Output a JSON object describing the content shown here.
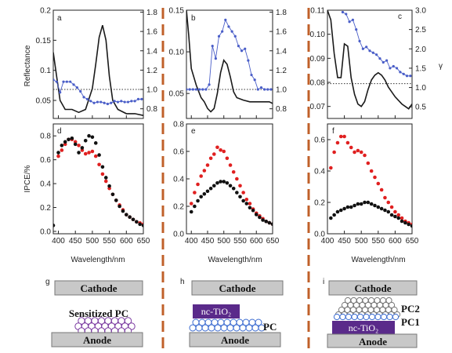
{
  "figure": {
    "y_label_top": "Reflectance",
    "y_label_bottom": "IPCE/%",
    "x_label": "Wavelength/nm",
    "gamma_symbol": "γ",
    "panel_labels": [
      "a",
      "b",
      "c",
      "d",
      "e",
      "f",
      "g",
      "h",
      "i"
    ]
  },
  "panels": {
    "g": {
      "cathode": "Cathode",
      "layer": "Sensitized PC",
      "anode": "Anode"
    },
    "h": {
      "cathode": "Cathode",
      "oxide": "nc-TiO₂",
      "pc": "PC",
      "anode": "Anode"
    },
    "i": {
      "cathode": "Cathode",
      "pc2": "PC2",
      "pc1": "PC1",
      "oxide": "nc-TiO₂",
      "anode": "Anode"
    }
  },
  "colors": {
    "reflectance": "#1a1a1a",
    "gamma": "#4a5ec8",
    "ipce_red": "#e02020",
    "ipce_black": "#111111",
    "plate": "#c8c8c8",
    "oxide": "#5a2a8a",
    "sphere_blue": "#3a6ad0",
    "sphere_purple": "#7a3aa0",
    "divider": "#c0602a"
  },
  "chart_data": [
    {
      "type": "line",
      "panel": "a",
      "xlim": [
        385,
        650
      ],
      "xticks": [
        400,
        450,
        500,
        550,
        600,
        650
      ],
      "ylim": [
        0.02,
        0.2
      ],
      "yticks": [
        0.05,
        0.1,
        0.15,
        0.2
      ],
      "yticklabels": [
        "0.05",
        "0.1",
        "0.15",
        "0.2"
      ],
      "y2lim": [
        0.7,
        1.82
      ],
      "y2ticks": [
        0.8,
        1.0,
        1.2,
        1.4,
        1.6,
        1.8
      ],
      "y2ticklabels": [
        "0.8",
        "1.0",
        "1.2",
        "1.4",
        "1.6",
        "1.8"
      ],
      "reference_line": 1.0,
      "series": [
        {
          "axis": "left",
          "x": [
            385,
            395,
            405,
            420,
            440,
            460,
            480,
            500,
            510,
            520,
            530,
            540,
            550,
            560,
            575,
            600,
            625,
            650
          ],
          "y": [
            0.13,
            0.09,
            0.05,
            0.035,
            0.035,
            0.03,
            0.035,
            0.07,
            0.11,
            0.155,
            0.175,
            0.15,
            0.09,
            0.05,
            0.035,
            0.028,
            0.028,
            0.025
          ]
        },
        {
          "axis": "right",
          "x": [
            385,
            395,
            405,
            415,
            425,
            435,
            445,
            455,
            465,
            475,
            485,
            495,
            505,
            515,
            525,
            535,
            545,
            555,
            565,
            575,
            585,
            595,
            605,
            615,
            625,
            635,
            645
          ],
          "y": [
            1.1,
            1.08,
            0.97,
            1.08,
            1.08,
            1.08,
            1.05,
            1.02,
            0.98,
            0.92,
            0.9,
            0.88,
            0.86,
            0.87,
            0.87,
            0.86,
            0.85,
            0.86,
            0.88,
            0.87,
            0.88,
            0.87,
            0.87,
            0.88,
            0.88,
            0.9,
            0.9
          ]
        }
      ]
    },
    {
      "type": "line",
      "panel": "b",
      "xlim": [
        385,
        650
      ],
      "xticks": [
        400,
        450,
        500,
        550,
        600,
        650
      ],
      "ylim": [
        0.02,
        0.15
      ],
      "yticks": [
        0.05,
        0.1,
        0.15
      ],
      "yticklabels": [
        "0.05",
        "0.10",
        "0.15"
      ],
      "y2lim": [
        0.7,
        1.82
      ],
      "y2ticks": [
        0.8,
        1.0,
        1.2,
        1.4,
        1.6,
        1.8
      ],
      "y2ticklabels": [
        "0.8",
        "1.0",
        "1.2",
        "1.4",
        "1.6",
        "1.8"
      ],
      "reference_line": 1.0,
      "series": [
        {
          "axis": "left",
          "x": [
            385,
            392,
            400,
            415,
            430,
            440,
            450,
            460,
            470,
            480,
            490,
            500,
            510,
            520,
            530,
            540,
            560,
            580,
            600,
            620,
            640,
            650
          ],
          "y": [
            0.15,
            0.12,
            0.08,
            0.06,
            0.045,
            0.04,
            0.032,
            0.028,
            0.032,
            0.05,
            0.075,
            0.09,
            0.085,
            0.07,
            0.052,
            0.045,
            0.042,
            0.04,
            0.04,
            0.04,
            0.04,
            0.038
          ]
        },
        {
          "axis": "right",
          "x": [
            385,
            395,
            405,
            415,
            425,
            435,
            445,
            455,
            465,
            475,
            485,
            495,
            505,
            515,
            525,
            535,
            545,
            555,
            565,
            575,
            585,
            595,
            605,
            615,
            625,
            635,
            645
          ],
          "y": [
            1.0,
            1.0,
            1.0,
            1.0,
            1.0,
            1.0,
            1.0,
            1.05,
            1.45,
            1.32,
            1.55,
            1.6,
            1.72,
            1.65,
            1.6,
            1.55,
            1.45,
            1.4,
            1.42,
            1.3,
            1.15,
            1.1,
            1.0,
            1.02,
            1.0,
            1.0,
            1.0
          ]
        }
      ]
    },
    {
      "type": "line",
      "panel": "c",
      "xlim": [
        400,
        650
      ],
      "xticks": [
        400,
        450,
        500,
        550,
        600,
        650
      ],
      "ylim": [
        0.065,
        0.11
      ],
      "yticks": [
        0.07,
        0.08,
        0.09,
        0.1,
        0.11
      ],
      "yticklabels": [
        "0.07",
        "0.08",
        "0.09",
        "0.10",
        "0.11"
      ],
      "y2lim": [
        0.2,
        3.0
      ],
      "y2ticks": [
        0.5,
        1.0,
        1.5,
        2.0,
        2.5,
        3.0
      ],
      "y2ticklabels": [
        "0.5",
        "1.0",
        "1.5",
        "2.0",
        "2.5",
        "3.0"
      ],
      "reference_line": 1.1,
      "series": [
        {
          "axis": "left",
          "x": [
            400,
            410,
            420,
            430,
            440,
            450,
            460,
            470,
            480,
            490,
            500,
            510,
            520,
            530,
            540,
            550,
            560,
            570,
            580,
            600,
            620,
            640,
            650
          ],
          "y": [
            0.11,
            0.106,
            0.092,
            0.082,
            0.082,
            0.096,
            0.095,
            0.082,
            0.075,
            0.071,
            0.07,
            0.072,
            0.077,
            0.081,
            0.083,
            0.084,
            0.083,
            0.081,
            0.078,
            0.074,
            0.071,
            0.069,
            0.071
          ]
        },
        {
          "axis": "right",
          "x": [
            445,
            455,
            465,
            475,
            485,
            495,
            505,
            515,
            525,
            535,
            545,
            555,
            565,
            575,
            585,
            595,
            605,
            615,
            625,
            635,
            645
          ],
          "y": [
            2.95,
            2.9,
            2.7,
            2.75,
            2.5,
            2.2,
            2.0,
            2.05,
            1.95,
            1.9,
            1.85,
            1.75,
            1.65,
            1.7,
            1.5,
            1.55,
            1.5,
            1.4,
            1.35,
            1.3,
            1.3
          ]
        }
      ]
    },
    {
      "type": "scatter",
      "panel": "d",
      "xlim": [
        385,
        650
      ],
      "xticks": [
        400,
        450,
        500,
        550,
        600,
        650
      ],
      "ylim": [
        -0.02,
        0.9
      ],
      "yticks": [
        0.0,
        0.2,
        0.4,
        0.6,
        0.8
      ],
      "yticklabels": [
        "0.0",
        "0.2",
        "0.4",
        "0.6",
        "0.8"
      ],
      "series": [
        {
          "color": "red",
          "x": [
            400,
            410,
            420,
            430,
            440,
            450,
            460,
            470,
            480,
            490,
            500,
            510,
            520,
            530,
            540,
            550,
            560,
            570,
            580,
            590,
            600,
            610,
            620,
            630,
            640,
            650
          ],
          "y": [
            0.63,
            0.68,
            0.73,
            0.77,
            0.77,
            0.75,
            0.72,
            0.68,
            0.65,
            0.66,
            0.67,
            0.63,
            0.56,
            0.48,
            0.42,
            0.36,
            0.31,
            0.26,
            0.22,
            0.18,
            0.14,
            0.12,
            0.1,
            0.08,
            0.07,
            0.06
          ]
        },
        {
          "color": "black",
          "x": [
            385,
            400,
            410,
            420,
            430,
            440,
            450,
            460,
            470,
            480,
            490,
            500,
            510,
            520,
            530,
            540,
            550,
            560,
            570,
            580,
            590,
            600,
            610,
            620,
            630,
            640,
            650
          ],
          "y": [
            0.05,
            0.66,
            0.72,
            0.75,
            0.77,
            0.78,
            0.73,
            0.66,
            0.7,
            0.76,
            0.8,
            0.79,
            0.74,
            0.64,
            0.54,
            0.45,
            0.38,
            0.31,
            0.26,
            0.21,
            0.17,
            0.14,
            0.12,
            0.1,
            0.08,
            0.06,
            0.05
          ]
        }
      ]
    },
    {
      "type": "scatter",
      "panel": "e",
      "xlim": [
        385,
        650
      ],
      "xticks": [
        400,
        450,
        500,
        550,
        600,
        650
      ],
      "ylim": [
        0.0,
        0.8
      ],
      "yticks": [
        0.0,
        0.2,
        0.4,
        0.6,
        0.8
      ],
      "yticklabels": [
        "0.0",
        "0.2",
        "0.4",
        "0.6",
        "0.8"
      ],
      "series": [
        {
          "color": "red",
          "x": [
            400,
            410,
            420,
            430,
            440,
            450,
            460,
            470,
            480,
            490,
            500,
            510,
            520,
            530,
            540,
            550,
            560,
            570,
            580,
            590,
            600,
            610,
            620,
            630,
            640,
            650
          ],
          "y": [
            0.22,
            0.3,
            0.36,
            0.42,
            0.46,
            0.5,
            0.55,
            0.58,
            0.63,
            0.61,
            0.6,
            0.55,
            0.5,
            0.45,
            0.4,
            0.35,
            0.3,
            0.25,
            0.22,
            0.18,
            0.15,
            0.13,
            0.11,
            0.09,
            0.08,
            0.07
          ]
        },
        {
          "color": "black",
          "x": [
            400,
            410,
            420,
            430,
            440,
            450,
            460,
            470,
            480,
            490,
            500,
            510,
            520,
            530,
            540,
            550,
            560,
            570,
            580,
            590,
            600,
            610,
            620,
            630,
            640,
            650
          ],
          "y": [
            0.16,
            0.2,
            0.24,
            0.27,
            0.29,
            0.31,
            0.33,
            0.35,
            0.37,
            0.38,
            0.38,
            0.37,
            0.35,
            0.33,
            0.3,
            0.27,
            0.24,
            0.22,
            0.19,
            0.17,
            0.14,
            0.12,
            0.1,
            0.09,
            0.08,
            0.07
          ]
        }
      ]
    },
    {
      "type": "scatter",
      "panel": "f",
      "xlim": [
        400,
        650
      ],
      "xticks": [
        400,
        450,
        500,
        550,
        600,
        650
      ],
      "ylim": [
        0.0,
        0.7
      ],
      "yticks": [
        0.0,
        0.2,
        0.4,
        0.6
      ],
      "yticklabels": [
        "0.0",
        "0.2",
        "0.4",
        "0.6"
      ],
      "series": [
        {
          "color": "red",
          "x": [
            410,
            420,
            430,
            440,
            450,
            460,
            470,
            480,
            490,
            500,
            510,
            520,
            530,
            540,
            550,
            560,
            570,
            580,
            590,
            600,
            610,
            620,
            630,
            640,
            650
          ],
          "y": [
            0.42,
            0.52,
            0.58,
            0.62,
            0.62,
            0.58,
            0.55,
            0.52,
            0.53,
            0.52,
            0.5,
            0.45,
            0.4,
            0.36,
            0.32,
            0.28,
            0.23,
            0.2,
            0.17,
            0.14,
            0.12,
            0.1,
            0.08,
            0.07,
            0.06
          ]
        },
        {
          "color": "black",
          "x": [
            410,
            420,
            430,
            440,
            450,
            460,
            470,
            480,
            490,
            500,
            510,
            520,
            530,
            540,
            550,
            560,
            570,
            580,
            590,
            600,
            610,
            620,
            630,
            640,
            650
          ],
          "y": [
            0.1,
            0.12,
            0.14,
            0.15,
            0.16,
            0.17,
            0.17,
            0.18,
            0.19,
            0.19,
            0.2,
            0.2,
            0.19,
            0.18,
            0.17,
            0.16,
            0.15,
            0.14,
            0.12,
            0.11,
            0.1,
            0.08,
            0.07,
            0.06,
            0.05
          ]
        }
      ]
    }
  ]
}
